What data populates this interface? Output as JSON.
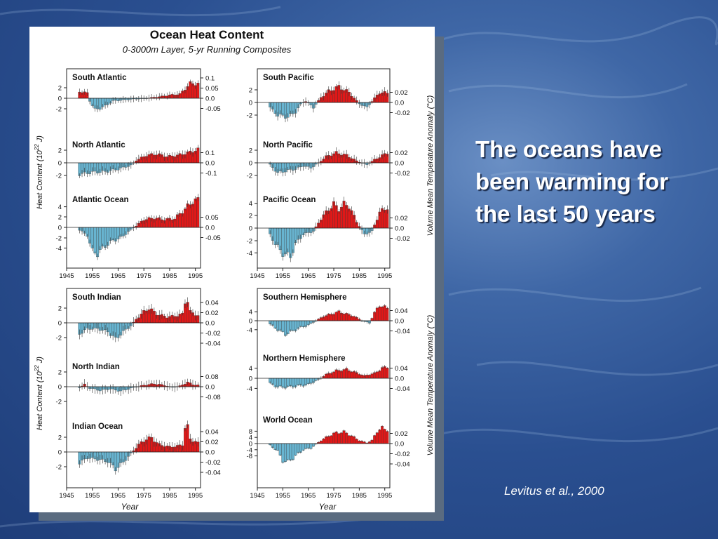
{
  "slide": {
    "headline": "The oceans have been warming for the last 50 years",
    "citation": "Levitus et al., 2000",
    "colors": {
      "warm": "#e01818",
      "cool": "#68b4d0"
    }
  },
  "figure": {
    "title": "Ocean Heat Content",
    "subtitle": "0-3000m Layer, 5-yr Running Composites",
    "left_axis_label": "Heat Content (10",
    "left_axis_sup": "22",
    "left_axis_unit": " J)",
    "right_axis_label": "Volume Mean Temperature Anomaly (°C)",
    "x_label": "Year",
    "x_ticks": [
      "1945",
      "1955",
      "1965",
      "1975",
      "1985",
      "1995"
    ]
  },
  "chart_data": [
    {
      "type": "bar",
      "title": "South Atlantic",
      "years": [
        1950,
        1996
      ],
      "left_ticks": [
        2,
        0,
        -2
      ],
      "right_ticks": [
        "0.1",
        "0.05",
        "0.0",
        "-0.05"
      ],
      "anchors": [
        [
          1950,
          1.3
        ],
        [
          1953,
          1.0
        ],
        [
          1954,
          -0.5
        ],
        [
          1956,
          -2.2
        ],
        [
          1960,
          -1.5
        ],
        [
          1963,
          -0.5
        ],
        [
          1970,
          -0.2
        ],
        [
          1976,
          0.0
        ],
        [
          1981,
          0.3
        ],
        [
          1985,
          0.6
        ],
        [
          1989,
          0.8
        ],
        [
          1991,
          1.8
        ],
        [
          1993,
          2.8
        ],
        [
          1996,
          2.8
        ]
      ]
    },
    {
      "type": "bar",
      "title": "North Atlantic",
      "years": [
        1950,
        1996
      ],
      "left_ticks": [
        2,
        0,
        -2
      ],
      "right_ticks": [
        "0.1",
        "0.0",
        "-0.1"
      ],
      "anchors": [
        [
          1950,
          -1.8
        ],
        [
          1955,
          -1.5
        ],
        [
          1960,
          -1.4
        ],
        [
          1965,
          -1.0
        ],
        [
          1970,
          -0.4
        ],
        [
          1972,
          0.4
        ],
        [
          1976,
          1.2
        ],
        [
          1980,
          1.4
        ],
        [
          1984,
          1.0
        ],
        [
          1988,
          1.2
        ],
        [
          1992,
          1.6
        ],
        [
          1996,
          2.1
        ]
      ]
    },
    {
      "type": "bar",
      "title": "Atlantic Ocean",
      "years": [
        1950,
        1996
      ],
      "left_ticks": [
        4,
        2,
        0,
        -2,
        -4
      ],
      "right_ticks": [
        "0.05",
        "0.0",
        "-0.05"
      ],
      "anchors": [
        [
          1950,
          -0.5
        ],
        [
          1953,
          -1.5
        ],
        [
          1955,
          -4.5
        ],
        [
          1957,
          -5.0
        ],
        [
          1960,
          -3.5
        ],
        [
          1963,
          -2.5
        ],
        [
          1966,
          -2.0
        ],
        [
          1969,
          -0.8
        ],
        [
          1972,
          0.3
        ],
        [
          1975,
          1.5
        ],
        [
          1979,
          1.8
        ],
        [
          1983,
          1.5
        ],
        [
          1987,
          1.7
        ],
        [
          1991,
          3.5
        ],
        [
          1994,
          5.0
        ],
        [
          1996,
          5.2
        ]
      ]
    },
    {
      "type": "bar",
      "title": "South Pacific",
      "years": [
        1950,
        1996
      ],
      "left_ticks": [
        2,
        0,
        -2
      ],
      "right_ticks": [
        "0.02",
        "0.0",
        "-0.02"
      ],
      "anchors": [
        [
          1950,
          -0.8
        ],
        [
          1953,
          -2.0
        ],
        [
          1957,
          -2.3
        ],
        [
          1960,
          -1.5
        ],
        [
          1962,
          -0.3
        ],
        [
          1964,
          0.2
        ],
        [
          1967,
          -0.8
        ],
        [
          1970,
          0.8
        ],
        [
          1973,
          1.8
        ],
        [
          1977,
          2.5
        ],
        [
          1981,
          1.6
        ],
        [
          1985,
          -0.2
        ],
        [
          1988,
          -0.8
        ],
        [
          1990,
          0.2
        ],
        [
          1993,
          1.6
        ],
        [
          1996,
          1.5
        ]
      ]
    },
    {
      "type": "bar",
      "title": "North Pacific",
      "years": [
        1950,
        1996
      ],
      "left_ticks": [
        2,
        0,
        -2
      ],
      "right_ticks": [
        "0.02",
        "0.0",
        "-0.02"
      ],
      "anchors": [
        [
          1950,
          -0.3
        ],
        [
          1953,
          -1.6
        ],
        [
          1957,
          -1.2
        ],
        [
          1960,
          -1.0
        ],
        [
          1963,
          -0.5
        ],
        [
          1966,
          -0.8
        ],
        [
          1969,
          0.0
        ],
        [
          1972,
          1.0
        ],
        [
          1976,
          1.6
        ],
        [
          1980,
          1.2
        ],
        [
          1984,
          0.3
        ],
        [
          1988,
          -0.3
        ],
        [
          1991,
          0.5
        ],
        [
          1996,
          1.6
        ]
      ]
    },
    {
      "type": "bar",
      "title": "Pacific Ocean",
      "years": [
        1950,
        1996
      ],
      "left_ticks": [
        4,
        2,
        0,
        -2,
        -4
      ],
      "right_ticks": [
        "0.02",
        "0.0",
        "-0.02"
      ],
      "anchors": [
        [
          1950,
          -1.0
        ],
        [
          1952,
          -2.5
        ],
        [
          1955,
          -4.0
        ],
        [
          1958,
          -4.5
        ],
        [
          1960,
          -2.5
        ],
        [
          1963,
          -1.0
        ],
        [
          1967,
          -0.5
        ],
        [
          1970,
          1.5
        ],
        [
          1973,
          3.0
        ],
        [
          1975,
          3.8
        ],
        [
          1977,
          3.0
        ],
        [
          1979,
          3.8
        ],
        [
          1981,
          3.5
        ],
        [
          1984,
          1.0
        ],
        [
          1987,
          -1.0
        ],
        [
          1990,
          -0.5
        ],
        [
          1993,
          2.5
        ],
        [
          1996,
          3.3
        ]
      ]
    },
    {
      "type": "bar",
      "title": "South Indian",
      "years": [
        1950,
        1996
      ],
      "left_ticks": [
        2,
        0,
        -2
      ],
      "right_ticks": [
        "0.04",
        "0.02",
        "0.0",
        "-0.02",
        "-0.04"
      ],
      "anchors": [
        [
          1950,
          -1.5
        ],
        [
          1953,
          -0.8
        ],
        [
          1957,
          -0.8
        ],
        [
          1961,
          -1.2
        ],
        [
          1964,
          -2.2
        ],
        [
          1967,
          -1.2
        ],
        [
          1970,
          -0.4
        ],
        [
          1972,
          0.5
        ],
        [
          1975,
          1.5
        ],
        [
          1977,
          2.0
        ],
        [
          1980,
          1.2
        ],
        [
          1984,
          0.8
        ],
        [
          1988,
          1.0
        ],
        [
          1990,
          1.2
        ],
        [
          1991,
          2.9
        ],
        [
          1992,
          3.0
        ],
        [
          1993,
          1.5
        ],
        [
          1996,
          1.0
        ]
      ]
    },
    {
      "type": "bar",
      "title": "North Indian",
      "years": [
        1950,
        1996
      ],
      "left_ticks": [
        2,
        0,
        -2
      ],
      "right_ticks": [
        "0.08",
        "0.0",
        "-0.08"
      ],
      "anchors": [
        [
          1950,
          -0.1
        ],
        [
          1952,
          0.3
        ],
        [
          1954,
          -0.2
        ],
        [
          1958,
          -0.5
        ],
        [
          1962,
          -0.3
        ],
        [
          1966,
          -0.6
        ],
        [
          1970,
          -0.2
        ],
        [
          1975,
          0.2
        ],
        [
          1979,
          0.4
        ],
        [
          1983,
          0.2
        ],
        [
          1986,
          -0.1
        ],
        [
          1989,
          0.1
        ],
        [
          1992,
          0.6
        ],
        [
          1994,
          0.3
        ],
        [
          1996,
          0.2
        ]
      ]
    },
    {
      "type": "bar",
      "title": "Indian Ocean",
      "years": [
        1950,
        1996
      ],
      "left_ticks": [
        2,
        0,
        -2
      ],
      "right_ticks": [
        "0.04",
        "0.02",
        "0.0",
        "-0.02",
        "-0.04"
      ],
      "anchors": [
        [
          1950,
          -1.5
        ],
        [
          1953,
          -0.8
        ],
        [
          1957,
          -1.0
        ],
        [
          1961,
          -1.3
        ],
        [
          1964,
          -2.3
        ],
        [
          1967,
          -1.4
        ],
        [
          1970,
          -0.2
        ],
        [
          1973,
          1.0
        ],
        [
          1976,
          1.8
        ],
        [
          1978,
          1.9
        ],
        [
          1981,
          1.0
        ],
        [
          1985,
          0.7
        ],
        [
          1988,
          0.8
        ],
        [
          1990,
          1.0
        ],
        [
          1991,
          3.3
        ],
        [
          1992,
          3.3
        ],
        [
          1993,
          1.8
        ],
        [
          1996,
          1.2
        ]
      ]
    },
    {
      "type": "bar",
      "title": "Southern Hemisphere",
      "years": [
        1950,
        1996
      ],
      "left_ticks": [
        4,
        0,
        -4
      ],
      "right_ticks": [
        "0.04",
        "0.0",
        "-0.04"
      ],
      "anchors": [
        [
          1950,
          -1.5
        ],
        [
          1953,
          -4.0
        ],
        [
          1956,
          -6.0
        ],
        [
          1959,
          -4.5
        ],
        [
          1962,
          -3.0
        ],
        [
          1965,
          -2.0
        ],
        [
          1968,
          0.0
        ],
        [
          1971,
          2.0
        ],
        [
          1974,
          3.0
        ],
        [
          1977,
          4.0
        ],
        [
          1980,
          3.0
        ],
        [
          1983,
          2.0
        ],
        [
          1986,
          0.0
        ],
        [
          1989,
          -1.0
        ],
        [
          1991,
          3.5
        ],
        [
          1993,
          7.0
        ],
        [
          1996,
          5.5
        ]
      ]
    },
    {
      "type": "bar",
      "title": "Northern Hemisphere",
      "years": [
        1950,
        1996
      ],
      "left_ticks": [
        4,
        0,
        -4
      ],
      "right_ticks": [
        "0.04",
        "0.0",
        "-0.04"
      ],
      "anchors": [
        [
          1950,
          -2.0
        ],
        [
          1953,
          -3.5
        ],
        [
          1957,
          -3.5
        ],
        [
          1961,
          -3.0
        ],
        [
          1965,
          -2.5
        ],
        [
          1969,
          -0.5
        ],
        [
          1972,
          1.5
        ],
        [
          1976,
          3.0
        ],
        [
          1980,
          3.5
        ],
        [
          1983,
          2.5
        ],
        [
          1987,
          1.0
        ],
        [
          1991,
          2.0
        ],
        [
          1994,
          4.0
        ],
        [
          1996,
          4.5
        ]
      ]
    },
    {
      "type": "bar",
      "title": "World Ocean",
      "years": [
        1950,
        1996
      ],
      "left_ticks": [
        8,
        4,
        0,
        -4,
        -8
      ],
      "right_ticks": [
        "0.02",
        "0.0",
        "-0.02",
        "-0.04"
      ],
      "anchors": [
        [
          1950,
          -1.0
        ],
        [
          1953,
          -5.0
        ],
        [
          1955,
          -11.0
        ],
        [
          1957,
          -12.0
        ],
        [
          1960,
          -8.0
        ],
        [
          1963,
          -4.0
        ],
        [
          1966,
          -3.0
        ],
        [
          1970,
          2.0
        ],
        [
          1973,
          5.0
        ],
        [
          1976,
          7.0
        ],
        [
          1979,
          7.5
        ],
        [
          1982,
          5.0
        ],
        [
          1985,
          2.0
        ],
        [
          1988,
          0.5
        ],
        [
          1990,
          2.0
        ],
        [
          1992,
          8.0
        ],
        [
          1994,
          10.0
        ],
        [
          1996,
          9.0
        ]
      ]
    }
  ]
}
